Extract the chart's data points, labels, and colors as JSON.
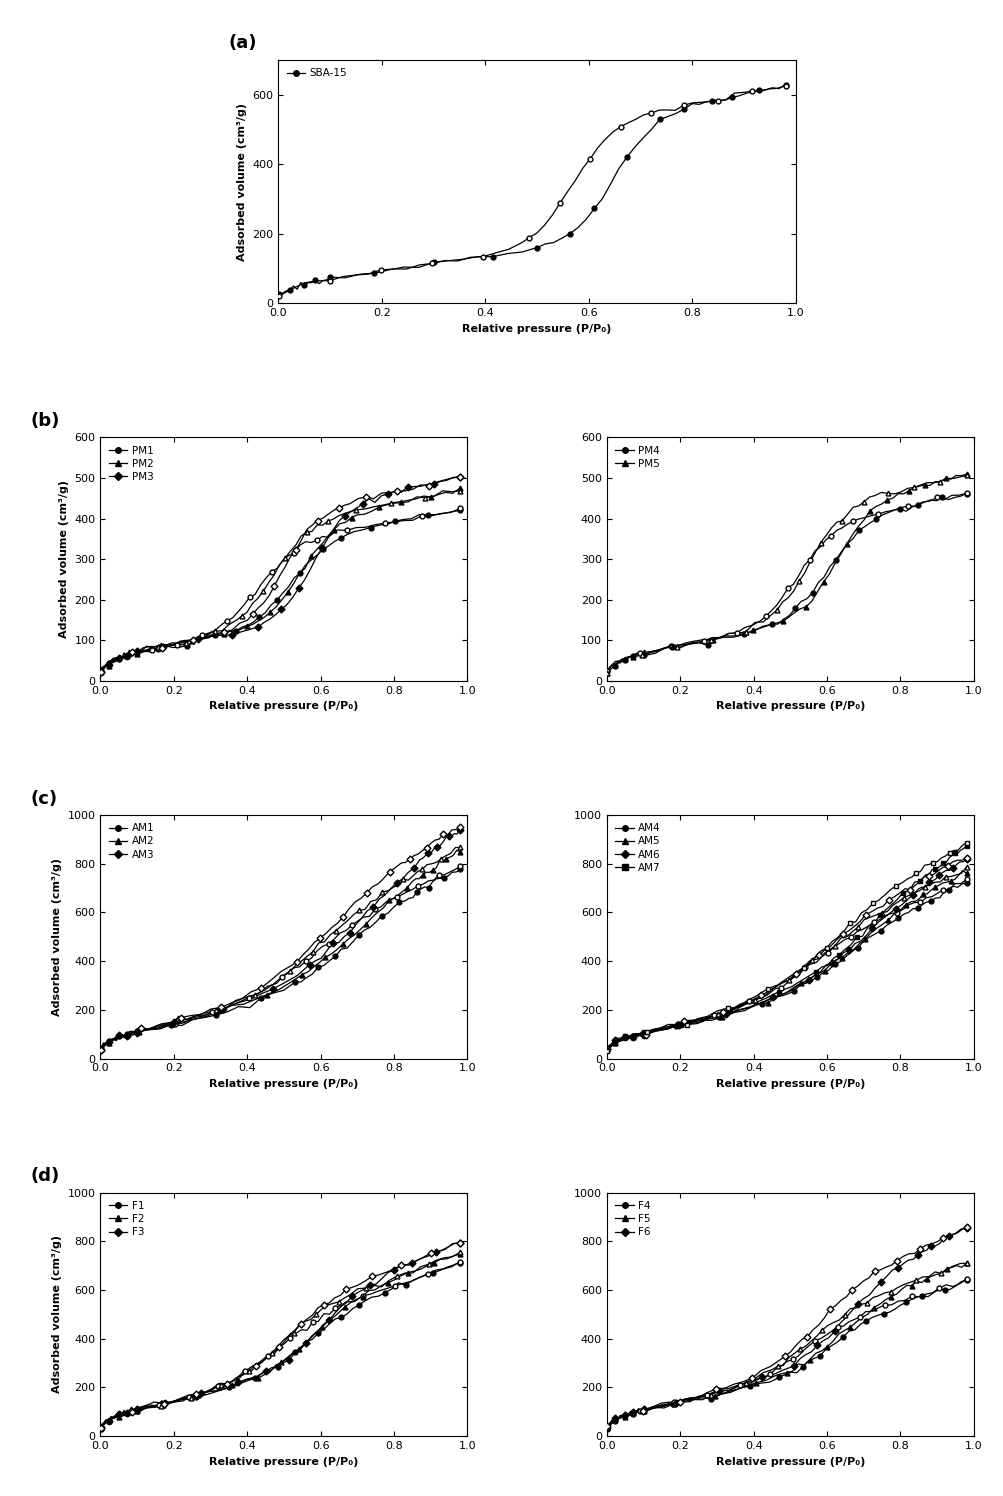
{
  "ylabel": "Adsorbed volume (cm³/g)",
  "xlabel": "Relative pressure (P/P₀)",
  "panel_labels": [
    "(a)",
    "(b)",
    "(c)",
    "(d)"
  ],
  "legend_labels": {
    "a": [
      "SBA-15"
    ],
    "b_left": [
      "PM1",
      "PM2",
      "PM3"
    ],
    "b_right": [
      "PM4",
      "PM5"
    ],
    "c_left": [
      "AM1",
      "AM2",
      "AM3"
    ],
    "c_right": [
      "AM4",
      "AM5",
      "AM6",
      "AM7"
    ],
    "d_left": [
      "F1",
      "F2",
      "F3"
    ],
    "d_right": [
      "F4",
      "F5",
      "F6"
    ]
  },
  "ylims": {
    "a": [
      0,
      700
    ],
    "b": [
      0,
      600
    ],
    "c": [
      0,
      1000
    ],
    "d": [
      0,
      1000
    ]
  },
  "yticks": {
    "a": [
      0,
      200,
      400,
      600
    ],
    "b": [
      0,
      100,
      200,
      300,
      400,
      500,
      600
    ],
    "c": [
      0,
      200,
      400,
      600,
      800,
      1000
    ],
    "d": [
      0,
      200,
      400,
      600,
      800,
      1000
    ]
  }
}
